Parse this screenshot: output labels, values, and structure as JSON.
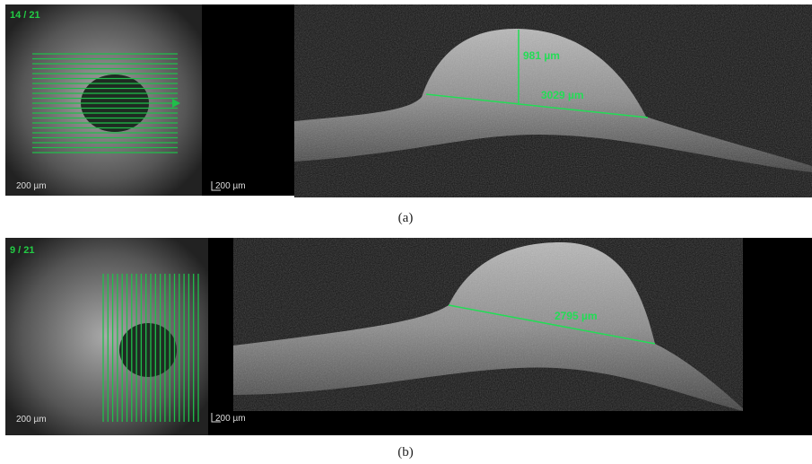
{
  "panels": [
    {
      "label": "(a)",
      "fundus": {
        "slice": "14 / 21",
        "scale": "200 µm"
      },
      "oct": {
        "scale": "200 µm",
        "measurements": [
          "981 µm",
          "3029 µm"
        ]
      }
    },
    {
      "label": "(b)",
      "fundus": {
        "slice": "9 / 21",
        "scale": "200 µm"
      },
      "oct": {
        "scale": "200 µm",
        "measurements": [
          "2795 µm"
        ]
      }
    }
  ]
}
